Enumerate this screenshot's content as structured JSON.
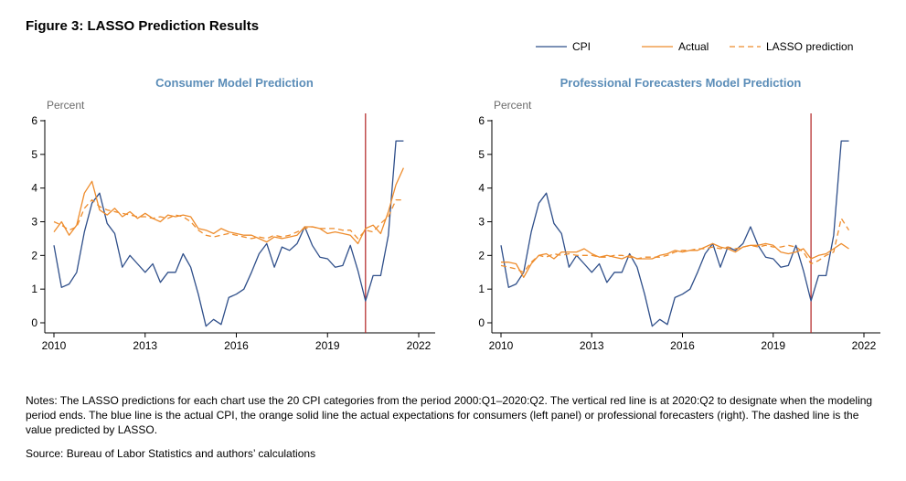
{
  "figure_title": "Figure 3: LASSO Prediction Results",
  "legend": [
    {
      "label": "CPI",
      "color": "#2f4f8a",
      "dash": "solid"
    },
    {
      "label": "Actual",
      "color": "#ee8c2c",
      "dash": "solid"
    },
    {
      "label": "LASSO prediction",
      "color": "#ee8c2c",
      "dash": "dashed"
    }
  ],
  "notes": "Notes: The LASSO predictions for each chart use the 20 CPI categories from the period 2000:Q1–2020:Q2. The vertical red line is at 2020:Q2 to designate when the modeling period ends. The blue line is the actual CPI, the orange solid line the actual expectations for consumers (left panel) or professional forecasters (right). The dashed line is the value predicted by LASSO.",
  "source": "Source: Bureau of Labor Statistics and authors’ calculations",
  "chart_data": [
    {
      "type": "line",
      "title": "Consumer Model Prediction",
      "ylabel": "Percent",
      "xlim": [
        2010,
        2022
      ],
      "ylim": [
        0,
        6
      ],
      "xticks": [
        2010,
        2013,
        2016,
        2019,
        2022
      ],
      "yticks": [
        0,
        1,
        2,
        3,
        4,
        5,
        6
      ],
      "grid": false,
      "vline": {
        "x": 2020.25,
        "color": "#b22222"
      },
      "x": [
        2010.0,
        2010.25,
        2010.5,
        2010.75,
        2011.0,
        2011.25,
        2011.5,
        2011.75,
        2012.0,
        2012.25,
        2012.5,
        2012.75,
        2013.0,
        2013.25,
        2013.5,
        2013.75,
        2014.0,
        2014.25,
        2014.5,
        2014.75,
        2015.0,
        2015.25,
        2015.5,
        2015.75,
        2016.0,
        2016.25,
        2016.5,
        2016.75,
        2017.0,
        2017.25,
        2017.5,
        2017.75,
        2018.0,
        2018.25,
        2018.5,
        2018.75,
        2019.0,
        2019.25,
        2019.5,
        2019.75,
        2020.0,
        2020.25,
        2020.5,
        2020.75,
        2021.0,
        2021.25,
        2021.5
      ],
      "series": [
        {
          "name": "CPI",
          "color": "#2f4f8a",
          "dash": "solid",
          "values": [
            2.3,
            1.05,
            1.15,
            1.5,
            2.7,
            3.55,
            3.85,
            2.95,
            2.65,
            1.65,
            2.0,
            1.75,
            1.5,
            1.75,
            1.2,
            1.5,
            1.5,
            2.05,
            1.65,
            0.85,
            -0.1,
            0.1,
            -0.05,
            0.75,
            0.85,
            1.0,
            1.5,
            2.05,
            2.35,
            1.65,
            2.25,
            2.15,
            2.35,
            2.85,
            2.3,
            1.95,
            1.9,
            1.65,
            1.7,
            2.3,
            1.55,
            0.65,
            1.4,
            1.4,
            2.6,
            5.4,
            5.4
          ]
        },
        {
          "name": "Actual",
          "color": "#ee8c2c",
          "dash": "solid",
          "values": [
            2.7,
            3.0,
            2.6,
            2.9,
            3.85,
            4.2,
            3.35,
            3.2,
            3.4,
            3.15,
            3.3,
            3.1,
            3.25,
            3.1,
            3.0,
            3.2,
            3.15,
            3.2,
            3.15,
            2.8,
            2.75,
            2.65,
            2.8,
            2.7,
            2.65,
            2.6,
            2.6,
            2.5,
            2.4,
            2.55,
            2.5,
            2.55,
            2.6,
            2.85,
            2.85,
            2.8,
            2.65,
            2.7,
            2.65,
            2.6,
            2.35,
            2.8,
            2.9,
            2.65,
            3.3,
            4.1,
            4.6
          ]
        },
        {
          "name": "LASSO prediction",
          "color": "#ee8c2c",
          "dash": "dashed",
          "values": [
            3.0,
            2.9,
            2.75,
            2.85,
            3.4,
            3.65,
            3.45,
            3.35,
            3.3,
            3.25,
            3.2,
            3.15,
            3.15,
            3.1,
            3.15,
            3.1,
            3.2,
            3.15,
            3.0,
            2.75,
            2.6,
            2.55,
            2.6,
            2.65,
            2.6,
            2.55,
            2.5,
            2.55,
            2.5,
            2.6,
            2.55,
            2.6,
            2.7,
            2.8,
            2.85,
            2.8,
            2.8,
            2.8,
            2.75,
            2.75,
            2.5,
            2.75,
            2.7,
            2.95,
            3.15,
            3.65,
            3.65
          ]
        }
      ]
    },
    {
      "type": "line",
      "title": "Professional Forecasters Model Prediction",
      "ylabel": "Percent",
      "xlim": [
        2010,
        2022
      ],
      "ylim": [
        0,
        6
      ],
      "xticks": [
        2010,
        2013,
        2016,
        2019,
        2022
      ],
      "yticks": [
        0,
        1,
        2,
        3,
        4,
        5,
        6
      ],
      "grid": false,
      "vline": {
        "x": 2020.25,
        "color": "#b22222"
      },
      "x": [
        2010.0,
        2010.25,
        2010.5,
        2010.75,
        2011.0,
        2011.25,
        2011.5,
        2011.75,
        2012.0,
        2012.25,
        2012.5,
        2012.75,
        2013.0,
        2013.25,
        2013.5,
        2013.75,
        2014.0,
        2014.25,
        2014.5,
        2014.75,
        2015.0,
        2015.25,
        2015.5,
        2015.75,
        2016.0,
        2016.25,
        2016.5,
        2016.75,
        2017.0,
        2017.25,
        2017.5,
        2017.75,
        2018.0,
        2018.25,
        2018.5,
        2018.75,
        2019.0,
        2019.25,
        2019.5,
        2019.75,
        2020.0,
        2020.25,
        2020.5,
        2020.75,
        2021.0,
        2021.25,
        2021.5
      ],
      "series": [
        {
          "name": "CPI",
          "color": "#2f4f8a",
          "dash": "solid",
          "values": [
            2.3,
            1.05,
            1.15,
            1.5,
            2.7,
            3.55,
            3.85,
            2.95,
            2.65,
            1.65,
            2.0,
            1.75,
            1.5,
            1.75,
            1.2,
            1.5,
            1.5,
            2.05,
            1.65,
            0.85,
            -0.1,
            0.1,
            -0.05,
            0.75,
            0.85,
            1.0,
            1.5,
            2.05,
            2.35,
            1.65,
            2.25,
            2.15,
            2.35,
            2.85,
            2.3,
            1.95,
            1.9,
            1.65,
            1.7,
            2.3,
            1.55,
            0.65,
            1.4,
            1.4,
            2.6,
            5.4,
            5.4
          ]
        },
        {
          "name": "Actual",
          "color": "#ee8c2c",
          "dash": "solid",
          "values": [
            1.8,
            1.8,
            1.75,
            1.35,
            1.75,
            2.0,
            2.05,
            1.9,
            2.1,
            2.1,
            2.1,
            2.2,
            2.05,
            1.95,
            2.0,
            1.95,
            1.9,
            2.0,
            1.9,
            1.9,
            1.9,
            2.0,
            2.05,
            2.15,
            2.1,
            2.15,
            2.15,
            2.25,
            2.35,
            2.25,
            2.2,
            2.1,
            2.25,
            2.3,
            2.3,
            2.35,
            2.3,
            2.1,
            2.05,
            2.1,
            2.2,
            1.9,
            2.0,
            2.05,
            2.2,
            2.35,
            2.2
          ]
        },
        {
          "name": "LASSO prediction",
          "color": "#ee8c2c",
          "dash": "dashed",
          "values": [
            1.7,
            1.65,
            1.6,
            1.5,
            1.8,
            2.0,
            1.95,
            2.05,
            2.0,
            2.05,
            2.0,
            2.0,
            2.0,
            1.95,
            1.95,
            2.0,
            2.0,
            1.95,
            1.9,
            1.95,
            1.95,
            1.95,
            2.0,
            2.1,
            2.15,
            2.15,
            2.2,
            2.2,
            2.25,
            2.2,
            2.25,
            2.2,
            2.25,
            2.3,
            2.25,
            2.3,
            2.25,
            2.25,
            2.3,
            2.25,
            2.1,
            1.75,
            1.85,
            2.0,
            2.1,
            3.1,
            2.75
          ]
        }
      ]
    }
  ]
}
